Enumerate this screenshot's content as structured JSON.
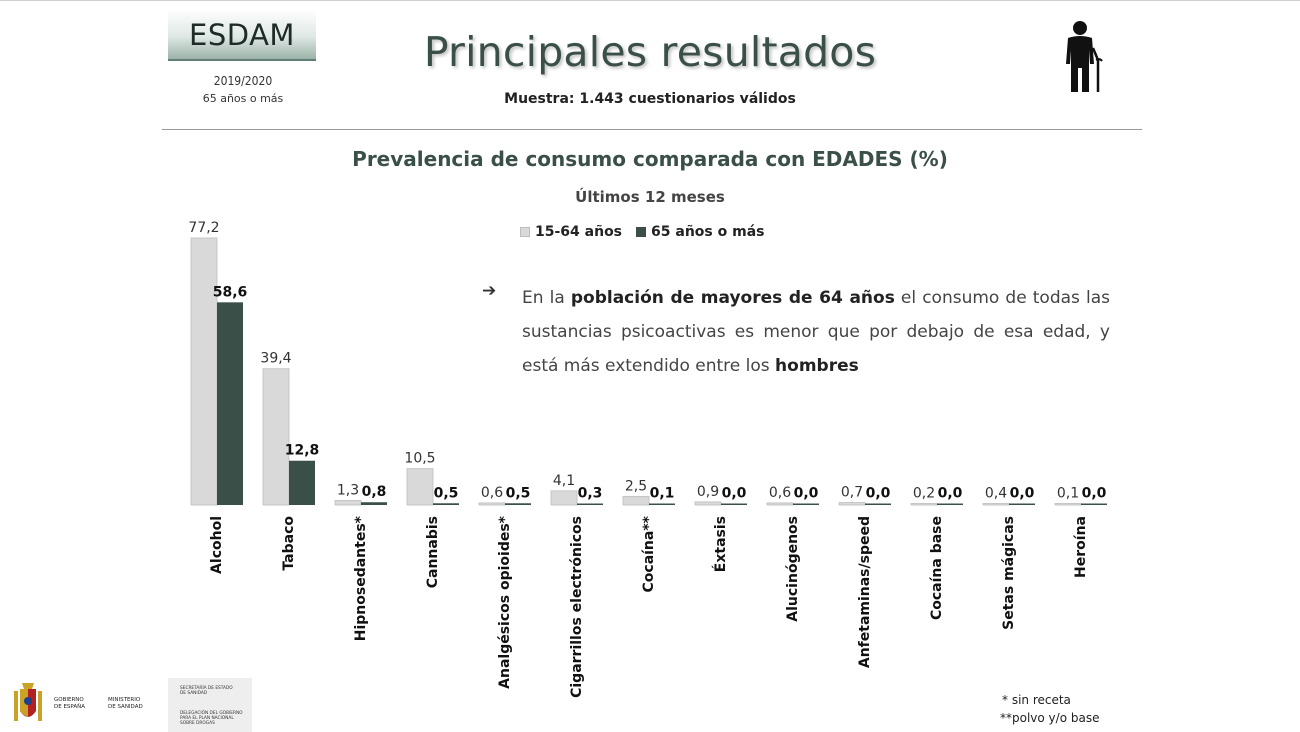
{
  "header": {
    "badge_title": "ESDAM",
    "badge_year": "2019/2020",
    "badge_age": "65 años o más",
    "title": "Principales resultados",
    "sample_label": "Muestra: 1.443 cuestionarios válidos",
    "icon": "elderly-person-icon"
  },
  "note": {
    "arrow": "➔",
    "text_before": "En la ",
    "bold_1": "población de mayores de 64 años",
    "text_middle": " el consumo de todas las sustancias psicoactivas es menor que por debajo de esa edad, y está más extendido entre los ",
    "bold_2": "hombres"
  },
  "footnotes": {
    "one": "* sin receta",
    "two": "**polvo y/o base"
  },
  "logos": {
    "gobierno": [
      "GOBIERNO",
      "DE ESPAÑA"
    ],
    "ministerio": [
      "MINISTERIO",
      "DE SANIDAD"
    ],
    "secretaria": [
      "SECRETARÍA DE ESTADO",
      "DE SANIDAD"
    ],
    "delegacion": [
      "DELEGACIÓN DEL GOBIERNO",
      "PARA EL PLAN NACIONAL",
      "SOBRE DROGAS"
    ]
  },
  "colors": {
    "series_1": "#d9d9d9",
    "series_2": "#3b4f49",
    "title": "#3b4f49"
  },
  "chart_data": {
    "type": "bar",
    "title": "Prevalencia de consumo comparada con EDADES (%)",
    "subtitle": "Últimos 12 meses",
    "legend_position": "top",
    "grid": false,
    "ylim": [
      0,
      80
    ],
    "categories": [
      "Alcohol",
      "Tabaco",
      "Hipnosedantes*",
      "Cannabis",
      "Analgésicos opioides*",
      "Cigarrillos electrónicos",
      "Cocaína**",
      "Éxtasis",
      "Alucinógenos",
      "Anfetaminas/speed",
      "Cocaína base",
      "Setas mágicas",
      "Heroína"
    ],
    "series": [
      {
        "name": "15-64 años",
        "values": [
          77.2,
          39.4,
          1.3,
          10.5,
          0.6,
          4.1,
          2.5,
          0.9,
          0.6,
          0.7,
          0.2,
          0.4,
          0.1
        ],
        "labels": [
          "77,2",
          "39,4",
          "1,3",
          "10,5",
          "0,6",
          "4,1",
          "2,5",
          "0,9",
          "0,6",
          "0,7",
          "0,2",
          "0,4",
          "0,1"
        ]
      },
      {
        "name": "65 años o más",
        "values": [
          58.6,
          12.8,
          0.8,
          0.5,
          0.5,
          0.3,
          0.1,
          0.0,
          0.0,
          0.0,
          0.0,
          0.0,
          0.0
        ],
        "labels": [
          "58,6",
          "12,8",
          "0,8",
          "0,5",
          "0,5",
          "0,3",
          "0,1",
          "0,0",
          "0,0",
          "0,0",
          "0,0",
          "0,0",
          "0,0"
        ]
      }
    ]
  }
}
